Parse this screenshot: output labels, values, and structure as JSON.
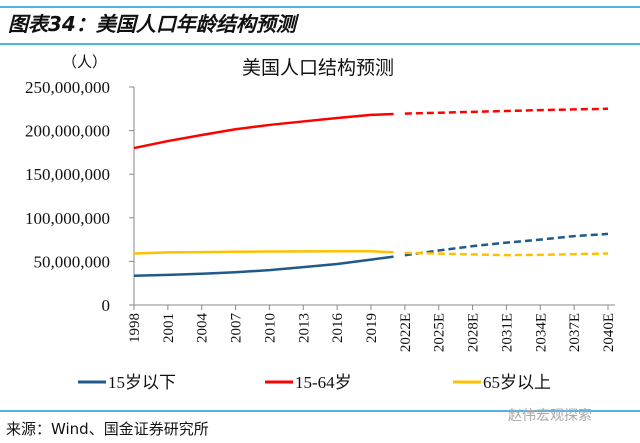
{
  "header": {
    "title": "图表34：美国人口年龄结构预测"
  },
  "footer": {
    "source": "来源：Wind、国金证券研究所",
    "watermark": "赵伟宏观探索"
  },
  "chart_data": {
    "type": "line",
    "title": "美国人口结构预测",
    "ylabel": "（人）",
    "xlabel": "",
    "ylim": [
      0,
      250000000
    ],
    "yticks": [
      "0",
      "50,000,000",
      "100,000,000",
      "150,000,000",
      "200,000,000",
      "250,000,000"
    ],
    "ytick_values": [
      0,
      50000000,
      100000000,
      150000000,
      200000000,
      250000000
    ],
    "xlim": [
      1998,
      2040
    ],
    "xticks": [
      "1998",
      "2001",
      "2004",
      "2007",
      "2010",
      "2013",
      "2016",
      "2019",
      "2022E",
      "2025E",
      "2028E",
      "2031E",
      "2034E",
      "2037E",
      "2040E"
    ],
    "xtick_values": [
      1998,
      2001,
      2004,
      2007,
      2010,
      2013,
      2016,
      2019,
      2022,
      2025,
      2028,
      2031,
      2034,
      2037,
      2040
    ],
    "legend_position": "bottom",
    "grid": false,
    "series": [
      {
        "name": "15岁以下",
        "color": "#1f5a8a",
        "actual_x": [
          1998,
          2001,
          2004,
          2007,
          2010,
          2013,
          2016,
          2019,
          2021
        ],
        "actual": [
          33600000,
          34500000,
          35800000,
          37500000,
          40000000,
          43500000,
          47000000,
          52000000,
          55500000
        ],
        "forecast_x": [
          2022,
          2025,
          2028,
          2031,
          2034,
          2037,
          2040
        ],
        "forecast": [
          57000000,
          62500000,
          67500000,
          71500000,
          75000000,
          79000000,
          81500000
        ]
      },
      {
        "name": "15-64岁",
        "color": "#ff0000",
        "actual_x": [
          1998,
          2001,
          2004,
          2007,
          2010,
          2013,
          2016,
          2019,
          2021
        ],
        "actual": [
          180000000,
          188000000,
          195000000,
          201500000,
          206500000,
          210500000,
          214500000,
          218000000,
          219000000
        ],
        "forecast_x": [
          2022,
          2025,
          2028,
          2031,
          2034,
          2037,
          2040
        ],
        "forecast": [
          219500000,
          220500000,
          221500000,
          222500000,
          223500000,
          224300000,
          225000000
        ]
      },
      {
        "name": "65岁以上",
        "color": "#ffc000",
        "actual_x": [
          1998,
          2001,
          2004,
          2007,
          2010,
          2013,
          2016,
          2019,
          2021
        ],
        "actual": [
          59000000,
          60300000,
          60700000,
          61000000,
          61300000,
          61500000,
          61700000,
          61600000,
          60500000
        ],
        "forecast_x": [
          2022,
          2025,
          2028,
          2031,
          2034,
          2037,
          2040
        ],
        "forecast": [
          59800000,
          59000000,
          58000000,
          57200000,
          57500000,
          58300000,
          59000000
        ]
      }
    ]
  }
}
